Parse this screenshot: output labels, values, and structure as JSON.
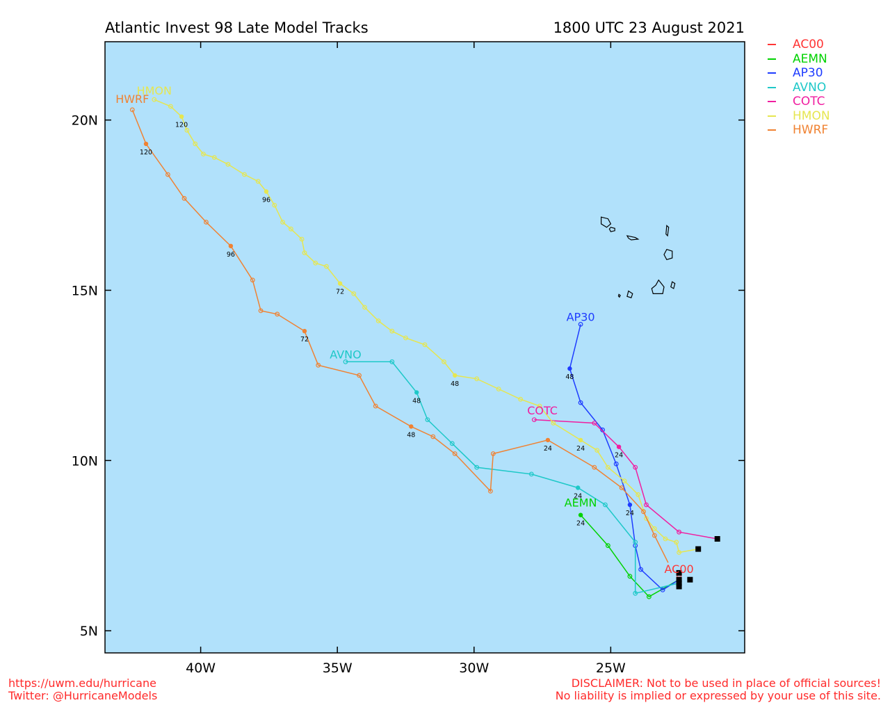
{
  "header": {
    "title_left": "Atlantic Invest 98 Late Model Tracks",
    "title_right": "1800 UTC 23 August 2021"
  },
  "footer": {
    "url": "https://uwm.edu/hurricane",
    "twitter": "Twitter: @HurricaneModels",
    "disclaimer_1": "DISCLAIMER: Not to be used in place of official sources!",
    "disclaimer_2": "No liability is implied or expressed by your use of this site."
  },
  "colors": {
    "ocean": "#b1e1fb",
    "land_outline": "#000000",
    "footer_text": "#ff2a2a"
  },
  "chart_data": {
    "type": "line",
    "title": "Atlantic Invest 98 Late Model Tracks",
    "subtitle": "1800 UTC 23 August 2021",
    "xlim": [
      -43.5,
      -20.1
    ],
    "ylim": [
      4.35,
      22.3
    ],
    "x_ticks": [
      {
        "v": -40,
        "label": "40W"
      },
      {
        "v": -35,
        "label": "35W"
      },
      {
        "v": -30,
        "label": "30W"
      },
      {
        "v": -25,
        "label": "25W"
      }
    ],
    "y_ticks": [
      {
        "v": 5,
        "label": "5N"
      },
      {
        "v": 10,
        "label": "10N"
      },
      {
        "v": 15,
        "label": "15N"
      },
      {
        "v": 20,
        "label": "20N"
      }
    ],
    "legend_position": "right-outside-top",
    "series": [
      {
        "name": "AC00",
        "color": "#ff3535",
        "label_pos": [
          -22.5,
          6.7
        ],
        "points": [
          [
            -22.5,
            6.6
          ],
          [
            -22.5,
            6.4
          ]
        ],
        "hours": []
      },
      {
        "name": "AEMN",
        "color": "#00d200",
        "label_pos": [
          -26.1,
          8.65
        ],
        "points": [
          [
            -22.5,
            6.5
          ],
          [
            -23.6,
            6.0
          ],
          [
            -24.3,
            6.6
          ],
          [
            -25.1,
            7.5
          ],
          [
            -26.1,
            8.4
          ]
        ],
        "hours": [
          {
            "i": 4,
            "label": "24"
          }
        ]
      },
      {
        "name": "AP30",
        "color": "#1e3cff",
        "label_pos": [
          -26.1,
          14.1
        ],
        "points": [
          [
            -22.5,
            6.5
          ],
          [
            -23.1,
            6.2
          ],
          [
            -23.9,
            6.8
          ],
          [
            -24.1,
            7.5
          ],
          [
            -24.3,
            8.7
          ],
          [
            -24.8,
            9.9
          ],
          [
            -25.3,
            10.9
          ],
          [
            -26.1,
            11.7
          ],
          [
            -26.5,
            12.7
          ],
          [
            -26.1,
            14.0
          ]
        ],
        "hours": [
          {
            "i": 4,
            "label": "24"
          },
          {
            "i": 8,
            "label": "48"
          }
        ]
      },
      {
        "name": "AVNO",
        "color": "#1ec8c8",
        "label_pos": [
          -34.7,
          13.0
        ],
        "points": [
          [
            -22.5,
            6.4
          ],
          [
            -24.1,
            6.1
          ],
          [
            -24.1,
            7.6
          ],
          [
            -25.2,
            8.7
          ],
          [
            -26.2,
            9.2
          ],
          [
            -27.9,
            9.6
          ],
          [
            -29.9,
            9.8
          ],
          [
            -30.8,
            10.5
          ],
          [
            -31.7,
            11.2
          ],
          [
            -32.1,
            12.0
          ],
          [
            -33.0,
            12.9
          ],
          [
            -34.7,
            12.9
          ]
        ],
        "hours": [
          {
            "i": 4,
            "label": "24"
          },
          {
            "i": 9,
            "label": "48"
          }
        ]
      },
      {
        "name": "COTC",
        "color": "#f01ea0",
        "label_pos": [
          -27.5,
          11.35
        ],
        "points": [
          [
            -21.1,
            7.7
          ],
          [
            -22.5,
            7.9
          ],
          [
            -23.7,
            8.7
          ],
          [
            -24.1,
            9.8
          ],
          [
            -24.7,
            10.4
          ],
          [
            -25.6,
            11.1
          ],
          [
            -27.8,
            11.2
          ]
        ],
        "hours": [
          {
            "i": 4,
            "label": "24"
          }
        ]
      },
      {
        "name": "HMON",
        "color": "#e6e650",
        "label_pos": [
          -41.7,
          20.75
        ],
        "points": [
          [
            -21.8,
            7.4
          ],
          [
            -22.5,
            7.3
          ],
          [
            -22.6,
            7.6
          ],
          [
            -23.0,
            7.7
          ],
          [
            -23.4,
            8.0
          ],
          [
            -23.7,
            8.3
          ],
          [
            -24.0,
            9.0
          ],
          [
            -24.5,
            9.4
          ],
          [
            -25.1,
            9.8
          ],
          [
            -25.5,
            10.3
          ],
          [
            -26.1,
            10.6
          ],
          [
            -27.1,
            11.1
          ],
          [
            -27.6,
            11.6
          ],
          [
            -28.3,
            11.8
          ],
          [
            -29.1,
            12.1
          ],
          [
            -29.9,
            12.4
          ],
          [
            -30.7,
            12.5
          ],
          [
            -31.1,
            12.9
          ],
          [
            -31.8,
            13.4
          ],
          [
            -32.5,
            13.6
          ],
          [
            -33.0,
            13.8
          ],
          [
            -33.5,
            14.1
          ],
          [
            -34.0,
            14.5
          ],
          [
            -34.4,
            14.9
          ],
          [
            -34.9,
            15.2
          ],
          [
            -35.4,
            15.7
          ],
          [
            -35.8,
            15.8
          ],
          [
            -36.2,
            16.1
          ],
          [
            -36.3,
            16.5
          ],
          [
            -36.7,
            16.8
          ],
          [
            -37.0,
            17.0
          ],
          [
            -37.3,
            17.5
          ],
          [
            -37.6,
            17.9
          ],
          [
            -37.9,
            18.2
          ],
          [
            -38.4,
            18.4
          ],
          [
            -39.0,
            18.7
          ],
          [
            -39.5,
            18.9
          ],
          [
            -39.9,
            19.0
          ],
          [
            -40.2,
            19.3
          ],
          [
            -40.5,
            19.7
          ],
          [
            -40.7,
            20.1
          ],
          [
            -41.1,
            20.4
          ],
          [
            -41.7,
            20.6
          ]
        ],
        "hours": [
          {
            "i": 10,
            "label": "24"
          },
          {
            "i": 16,
            "label": "48"
          },
          {
            "i": 24,
            "label": "72"
          },
          {
            "i": 32,
            "label": "96"
          },
          {
            "i": 40,
            "label": "120"
          }
        ]
      },
      {
        "name": "HWRF",
        "color": "#f08232",
        "label_pos": [
          -42.5,
          20.5
        ],
        "points": [
          [
            -22.9,
            7.0
          ],
          [
            -23.4,
            7.8
          ],
          [
            -23.8,
            8.5
          ],
          [
            -24.6,
            9.2
          ],
          [
            -25.6,
            9.8
          ],
          [
            -27.3,
            10.6
          ],
          [
            -29.3,
            10.2
          ],
          [
            -29.4,
            9.1
          ],
          [
            -30.7,
            10.2
          ],
          [
            -31.5,
            10.7
          ],
          [
            -32.3,
            11.0
          ],
          [
            -33.6,
            11.6
          ],
          [
            -34.2,
            12.5
          ],
          [
            -35.7,
            12.8
          ],
          [
            -36.2,
            13.8
          ],
          [
            -37.2,
            14.3
          ],
          [
            -37.8,
            14.4
          ],
          [
            -38.1,
            15.3
          ],
          [
            -38.9,
            16.3
          ],
          [
            -39.8,
            17.0
          ],
          [
            -40.6,
            17.7
          ],
          [
            -41.2,
            18.4
          ],
          [
            -42.0,
            19.3
          ],
          [
            -42.5,
            20.3
          ]
        ],
        "hours": [
          {
            "i": 5,
            "label": "24"
          },
          {
            "i": 10,
            "label": "48"
          },
          {
            "i": 14,
            "label": "72"
          },
          {
            "i": 18,
            "label": "96"
          },
          {
            "i": 22,
            "label": "120"
          }
        ]
      }
    ],
    "start_markers": [
      [
        -21.1,
        7.7
      ],
      [
        -21.8,
        7.4
      ],
      [
        -22.1,
        6.5
      ],
      [
        -22.5,
        6.7
      ],
      [
        -22.5,
        6.5
      ],
      [
        -22.5,
        6.4
      ],
      [
        -22.5,
        6.3
      ]
    ],
    "islands": [
      [
        [
          -25.35,
          17.15
        ],
        [
          -25.1,
          17.1
        ],
        [
          -25.0,
          16.95
        ],
        [
          -25.15,
          16.85
        ],
        [
          -25.35,
          16.95
        ]
      ],
      [
        [
          -25.0,
          16.85
        ],
        [
          -24.85,
          16.82
        ],
        [
          -24.85,
          16.75
        ],
        [
          -25.0,
          16.72
        ],
        [
          -25.05,
          16.8
        ]
      ],
      [
        [
          -24.4,
          16.6
        ],
        [
          -24.1,
          16.55
        ],
        [
          -24.0,
          16.5
        ],
        [
          -24.25,
          16.48
        ],
        [
          -24.35,
          16.53
        ]
      ],
      [
        [
          -22.95,
          16.9
        ],
        [
          -22.88,
          16.85
        ],
        [
          -22.92,
          16.6
        ],
        [
          -22.98,
          16.65
        ]
      ],
      [
        [
          -22.95,
          16.2
        ],
        [
          -22.75,
          16.15
        ],
        [
          -22.75,
          15.95
        ],
        [
          -22.95,
          15.9
        ],
        [
          -23.05,
          16.05
        ]
      ],
      [
        [
          -23.25,
          15.3
        ],
        [
          -23.05,
          15.1
        ],
        [
          -23.1,
          14.9
        ],
        [
          -23.45,
          14.9
        ],
        [
          -23.5,
          15.05
        ],
        [
          -23.35,
          15.15
        ]
      ],
      [
        [
          -22.75,
          15.25
        ],
        [
          -22.65,
          15.2
        ],
        [
          -22.7,
          15.05
        ],
        [
          -22.8,
          15.1
        ]
      ],
      [
        [
          -24.35,
          14.98
        ],
        [
          -24.2,
          14.9
        ],
        [
          -24.25,
          14.78
        ],
        [
          -24.4,
          14.82
        ]
      ],
      [
        [
          -24.7,
          14.88
        ],
        [
          -24.65,
          14.85
        ],
        [
          -24.68,
          14.8
        ],
        [
          -24.72,
          14.83
        ]
      ]
    ]
  }
}
